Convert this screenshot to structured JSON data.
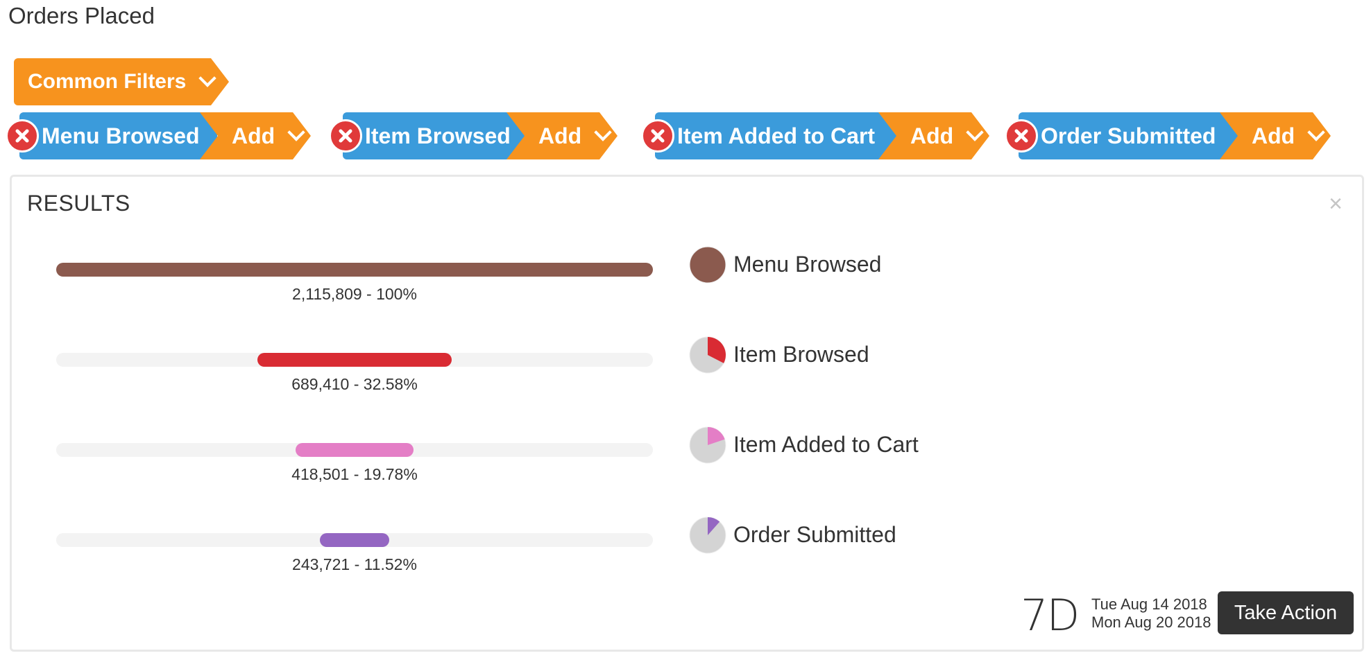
{
  "page": {
    "title": "Orders Placed"
  },
  "filters": {
    "common_label": "Common Filters"
  },
  "steps": [
    {
      "name": "Menu Browsed",
      "add_label": "Add"
    },
    {
      "name": "Item Browsed",
      "add_label": "Add"
    },
    {
      "name": "Item Added to Cart",
      "add_label": "Add"
    },
    {
      "name": "Order Submitted",
      "add_label": "Add"
    }
  ],
  "results": {
    "title": "RESULTS",
    "close_label": "×",
    "rows": [
      {
        "name": "Menu Browsed",
        "value_label": "2,115,809 - 100%",
        "count": 2115809,
        "percent": 100,
        "color": "#8b5a4e"
      },
      {
        "name": "Item Browsed",
        "value_label": "689,410 - 32.58%",
        "count": 689410,
        "percent": 32.58,
        "color": "#d92b33"
      },
      {
        "name": "Item Added to Cart",
        "value_label": "418,501 - 19.78%",
        "count": 418501,
        "percent": 19.78,
        "color": "#e47ec6"
      },
      {
        "name": "Order Submitted",
        "value_label": "243,721 - 11.52%",
        "count": 243721,
        "percent": 11.52,
        "color": "#9466c2"
      }
    ],
    "period": "7D",
    "date_start": "Tue Aug 14 2018",
    "date_end": "Mon Aug 20 2018",
    "action_label": "Take Action"
  },
  "colors": {
    "step_blue": "#3b9bdb",
    "add_orange": "#f7931e",
    "remove_red": "#e03a3a",
    "pie_grey": "#d4d4d4"
  }
}
